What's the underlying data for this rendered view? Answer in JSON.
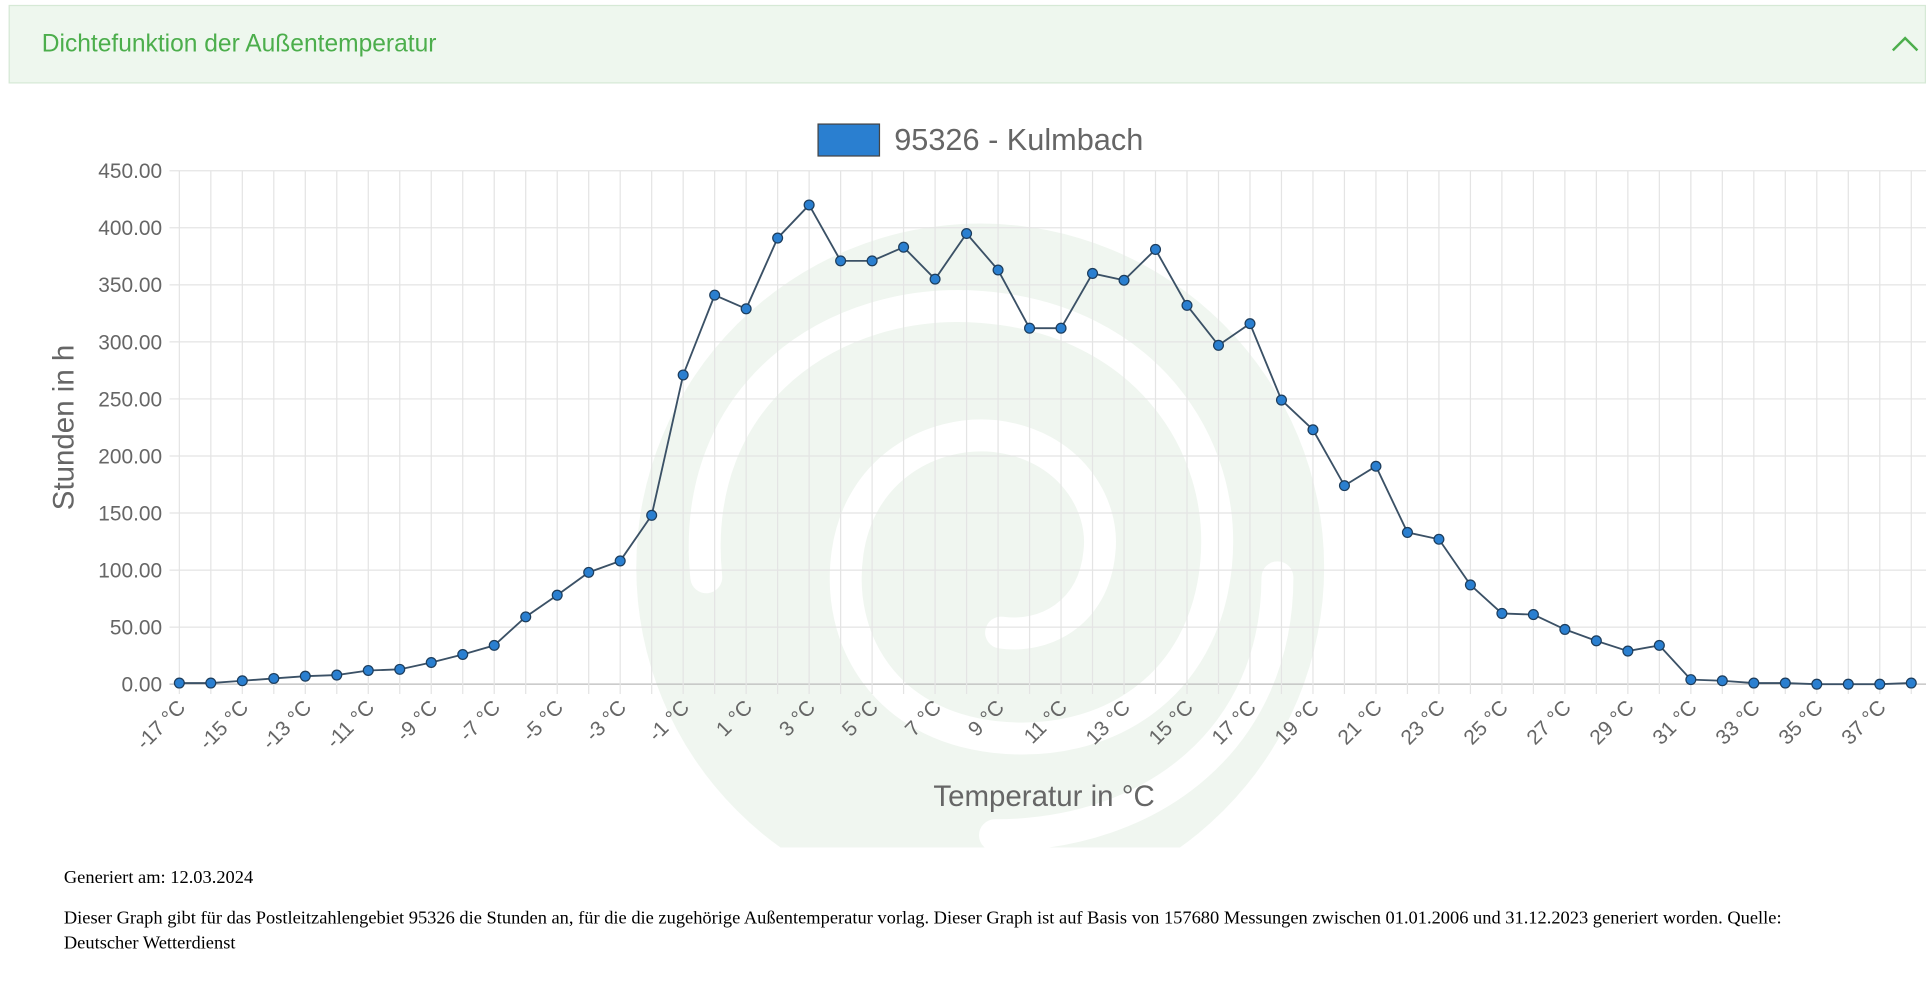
{
  "header": {
    "title": "Dichtefunktion der Außentemperatur"
  },
  "chart_data": {
    "type": "line",
    "x_label": "Temperatur in °C",
    "y_label": "Stunden in h",
    "categories": [
      "-17 °C",
      null,
      "-15 °C",
      null,
      "-13 °C",
      null,
      "-11 °C",
      null,
      "-9 °C",
      null,
      "-7 °C",
      null,
      "-5 °C",
      null,
      "-3 °C",
      null,
      "-1 °C",
      null,
      "1 °C",
      null,
      "3 °C",
      null,
      "5 °C",
      null,
      "7 °C",
      null,
      "9 °C",
      null,
      "11 °C",
      null,
      "13 °C",
      null,
      "15 °C",
      null,
      "17 °C",
      null,
      "19 °C",
      null,
      "21 °C",
      null,
      "23 °C",
      null,
      "25 °C",
      null,
      "27 °C",
      null,
      "29 °C",
      null,
      "31 °C",
      null,
      "33 °C",
      null,
      "35 °C",
      null,
      "37 °C",
      null
    ],
    "series": [
      {
        "name": "95326 - Kulmbach",
        "color": "#2a7fd0",
        "line_color": "#3b5166",
        "values": [
          1,
          1,
          3,
          5,
          7,
          8,
          12,
          13,
          19,
          26,
          34,
          59,
          78,
          98,
          108,
          148,
          271,
          341,
          329,
          391,
          420,
          371,
          371,
          383,
          355,
          395,
          363,
          312,
          312,
          360,
          354,
          381,
          332,
          297,
          316,
          249,
          223,
          174,
          191,
          133,
          127,
          87,
          62,
          61,
          48,
          38,
          29,
          34,
          4,
          3,
          1,
          1,
          0,
          0,
          0,
          1
        ]
      }
    ],
    "ylim": [
      0,
      450
    ],
    "yticks": [
      {
        "value": 0,
        "label": "0.00"
      },
      {
        "value": 50,
        "label": "50.00"
      },
      {
        "value": 100,
        "label": "100.00"
      },
      {
        "value": 150,
        "label": "150.00"
      },
      {
        "value": 200,
        "label": "200.00"
      },
      {
        "value": 250,
        "label": "250.00"
      },
      {
        "value": 300,
        "label": "300.00"
      },
      {
        "value": 350,
        "label": "350.00"
      },
      {
        "value": 400,
        "label": "400.00"
      },
      {
        "value": 450,
        "label": "450.00"
      }
    ],
    "grid": true,
    "legend": "top"
  },
  "footer": {
    "generated": "Generiert am: 12.03.2024",
    "description": "Dieser Graph gibt für das Postleitzahlengebiet 95326 die Stunden an, für die die zugehörige Außentemperatur vorlag. Dieser Graph ist auf Basis von 157680 Messungen zwischen 01.01.2006 und 31.12.2023 generiert worden. Quelle: Deutscher Wetterdienst"
  }
}
